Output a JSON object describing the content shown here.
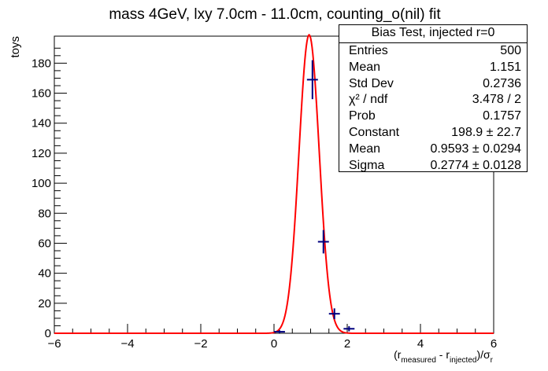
{
  "chart_data": {
    "type": "histogram+fit",
    "title": "mass 4GeV, lxy 7.0cm - 11.0cm, counting_o(nil) fit",
    "ylabel": "toys",
    "xlabel_parts": {
      "open": "(r",
      "sub1": "measured",
      "minus": " - r",
      "sub2": "injected",
      "close": ")/σ",
      "sub3": "r"
    },
    "xlim": [
      -6,
      6
    ],
    "ylim": [
      0,
      198
    ],
    "x_ticks": [
      "−6",
      "−4",
      "−2",
      "0",
      "2",
      "4",
      "6"
    ],
    "y_ticks": [
      "0",
      "20",
      "40",
      "60",
      "80",
      "100",
      "120",
      "140",
      "160",
      "180"
    ],
    "histogram": {
      "bin_width": 0.3,
      "points": [
        {
          "x": 0.15,
          "y": 1,
          "err": 1
        },
        {
          "x": 1.05,
          "y": 169,
          "err": 13
        },
        {
          "x": 1.35,
          "y": 61,
          "err": 7.8
        },
        {
          "x": 1.65,
          "y": 13,
          "err": 3.6
        },
        {
          "x": 2.05,
          "y": 3,
          "err": 1.7
        }
      ]
    },
    "fit": {
      "function": "gaus",
      "constant": 198.9,
      "mean": 0.9593,
      "sigma": 0.2774,
      "color": "#ff0000"
    },
    "marker_color": "#00007f",
    "grid": false
  },
  "stats_box": {
    "title": "Bias Test, injected r=0",
    "rows": [
      {
        "label": "Entries",
        "value": "500"
      },
      {
        "label": "Mean",
        "value": "1.151"
      },
      {
        "label": "Std Dev",
        "value": "0.2736"
      },
      {
        "label": "χ² / ndf",
        "value": "3.478 / 2"
      },
      {
        "label": "Prob",
        "value": "0.1757"
      },
      {
        "label": "Constant",
        "value": "198.9 ± 22.7"
      },
      {
        "label": "Mean",
        "value": "0.9593 ± 0.0294"
      },
      {
        "label": "Sigma",
        "value": "0.2774 ± 0.0128"
      }
    ]
  }
}
